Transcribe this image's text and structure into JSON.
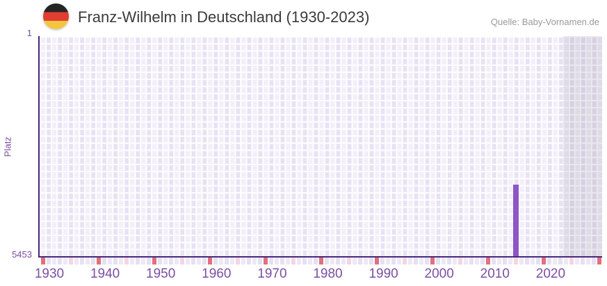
{
  "header": {
    "title": "Franz-Wilhelm in Deutschland (1930-2023)",
    "source": "Quelle: Baby-Vornamen.de",
    "flag": "germany"
  },
  "chart_data": {
    "type": "bar",
    "title": "Franz-Wilhelm in Deutschland (1930-2023)",
    "source": "Quelle: Baby-Vornamen.de",
    "xlabel": "",
    "ylabel": "Platz",
    "yaxis": {
      "min": 1,
      "max": 5453,
      "inverted": true,
      "tick_labels": [
        "1",
        "5453"
      ]
    },
    "xaxis": {
      "grid_start_year": 1930,
      "grid_end_year": 2030,
      "data_start_year": 1930,
      "data_end_year": 2023,
      "tick_years": [
        1930,
        1940,
        1950,
        1960,
        1970,
        1980,
        1990,
        2000,
        2010,
        2020
      ]
    },
    "series": [
      {
        "name": "Platz",
        "points": [
          {
            "year": 2015,
            "rank": 3680
          }
        ]
      }
    ],
    "bottom_marks": {
      "decade_years": [
        1930,
        1940,
        1950,
        1960,
        1970,
        1980,
        1990,
        2000,
        2010,
        2020,
        2030
      ],
      "half_decade_years": [
        1935,
        1945,
        1955,
        1965,
        1975,
        1985,
        1995,
        2005,
        2015,
        2025
      ]
    },
    "shaded_no_data_from_year": 2024,
    "legend": false,
    "grid": true
  },
  "colors": {
    "bar": "#8d56c6",
    "axis_line": "#46277b",
    "tick_label": "#7a4fa3",
    "chart_title": "#3b3b3b",
    "source_text": "#999999",
    "cell_light": "#f2effa",
    "cell_dark": "#e8e3f4",
    "grid_line": "#ffffff",
    "shade_overlay": "rgba(104,95,128,0.14)",
    "decade_mark": "#e0707c",
    "half_decade_mark": "#f4d6e0",
    "flag_black": "#252525",
    "flag_red": "#e13e32",
    "flag_gold": "#f4c63f"
  }
}
